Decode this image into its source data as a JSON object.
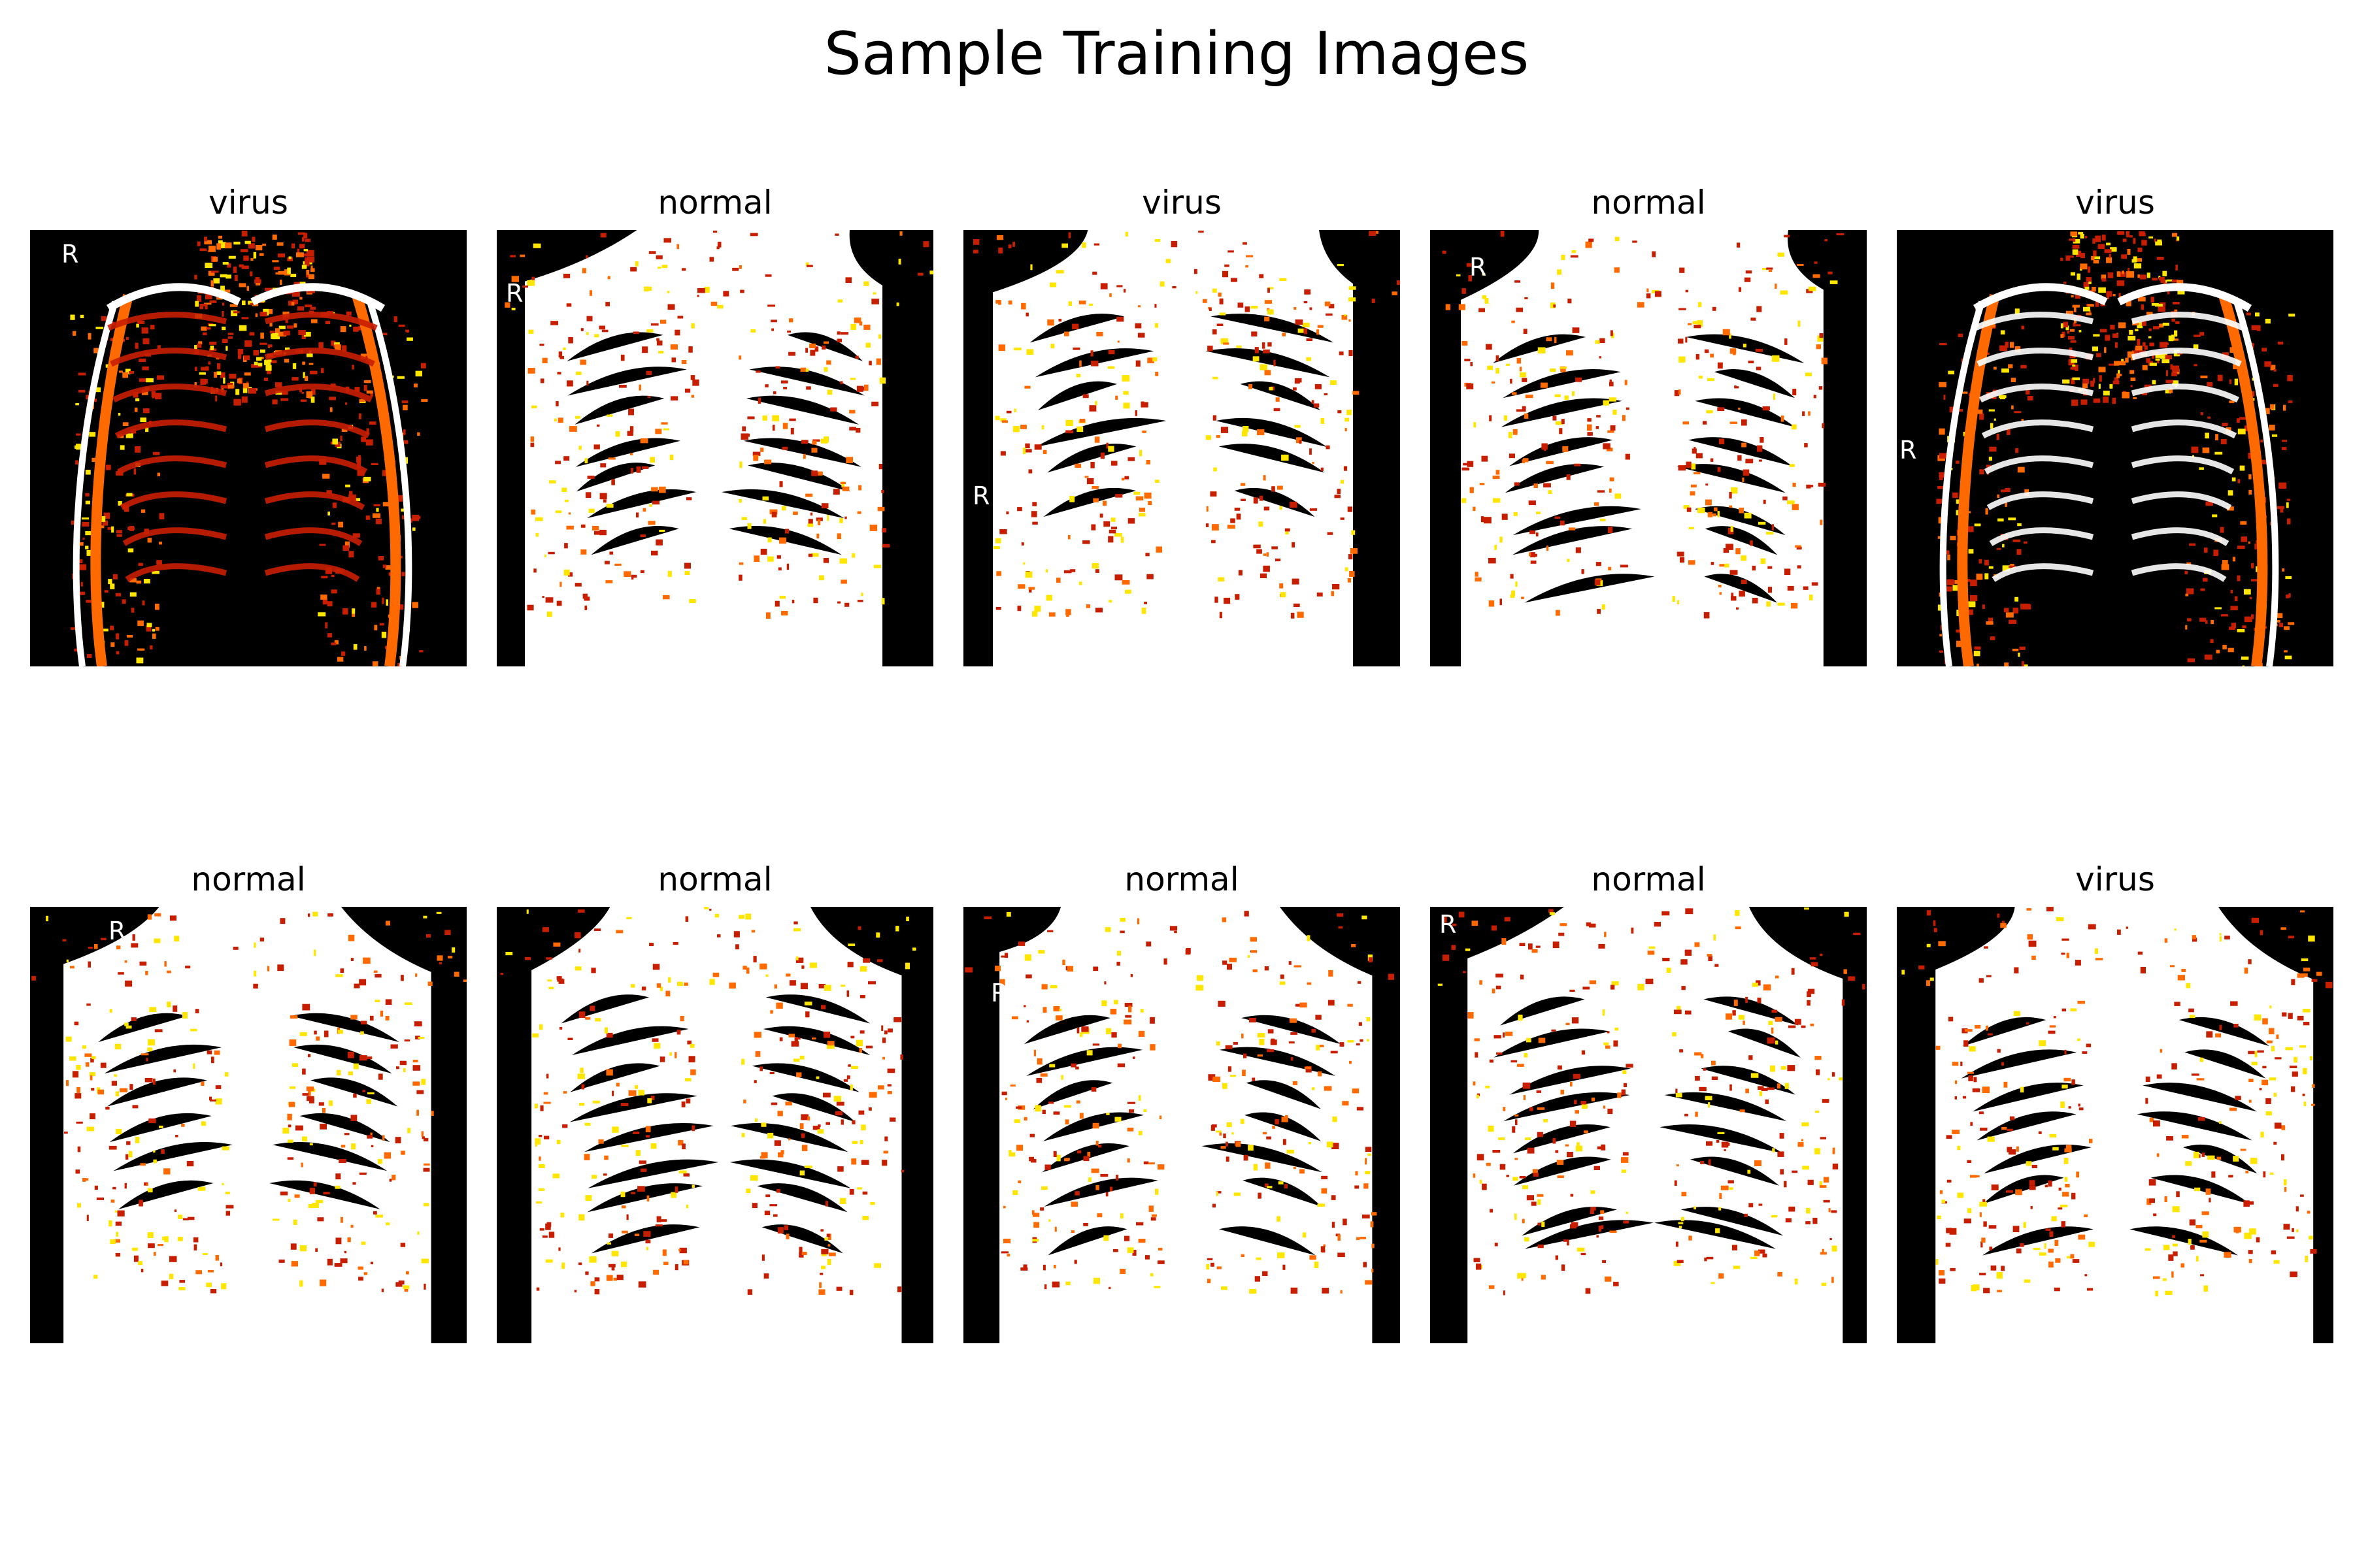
{
  "figure": {
    "title": "Sample Training Images"
  },
  "panels": [
    {
      "label": "virus",
      "image": "chest x-ray, dark lungs with orange/red/yellow threshold noise, marker R top-left",
      "variant": "dark"
    },
    {
      "label": "normal",
      "image": "chest x-ray, white thorax with black rib gaps, marker R top",
      "variant": "white"
    },
    {
      "label": "virus",
      "image": "chest x-ray, white thorax with black/red rib gaps, marker R left",
      "variant": "white"
    },
    {
      "label": "normal",
      "image": "chest x-ray, white thorax with black rib gaps, marker R left",
      "variant": "white"
    },
    {
      "label": "virus",
      "image": "chest x-ray, dark lungs with white ribs and red noise, marker R left",
      "variant": "dark"
    },
    {
      "label": "normal",
      "image": "chest x-ray, mostly white thorax with sparse rib shadows, marker R top",
      "variant": "white"
    },
    {
      "label": "normal",
      "image": "chest x-ray, white thorax with black lung fields, marker R left",
      "variant": "white"
    },
    {
      "label": "normal",
      "image": "chest x-ray, white thorax with black lung fields, marker R left",
      "variant": "white"
    },
    {
      "label": "normal",
      "image": "chest x-ray, white thorax with black rib gaps, marker R top-left",
      "variant": "white"
    },
    {
      "label": "virus",
      "image": "chest x-ray, white thorax with black lower lungs, marker R top-left",
      "variant": "white"
    }
  ],
  "palette": {
    "black": "#000000",
    "white": "#ffffff",
    "red": "#c81e00",
    "orange": "#ff6a00",
    "yellow": "#ffe600"
  }
}
